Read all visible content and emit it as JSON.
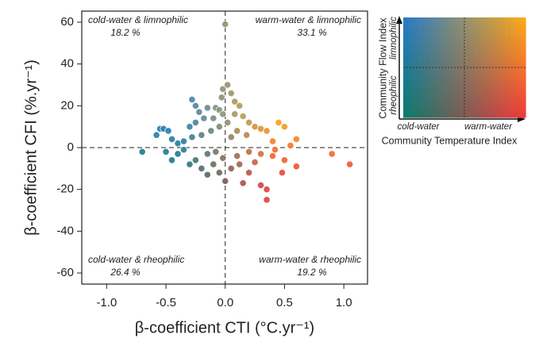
{
  "chart_data": {
    "type": "scatter",
    "xlabel": "β-coefficient CTI (°C.yr⁻¹)",
    "ylabel": "β-coefficient CFI (%.yr⁻¹)",
    "xlim": [
      -1.21,
      1.2
    ],
    "ylim": [
      -65.3,
      65.3
    ],
    "xticks": [
      {
        "value": -1,
        "label": "-1.0"
      },
      -0.5,
      {
        "value": 0,
        "label": "0.0"
      },
      0.5,
      {
        "value": 1,
        "label": "1.0"
      }
    ],
    "yticks": [
      -60,
      -40,
      -20,
      0,
      20,
      40,
      60
    ],
    "corner_colors": {
      "limnophilic_cold": "#2b7bc4",
      "limnophilic_warm": "#f9a91b",
      "rheophilic_cold": "#0f7a6c",
      "rheophilic_warm": "#ef3b3b"
    },
    "annotations": [
      {
        "text": "cold-water & limnophilic",
        "share": "18.2 %"
      },
      {
        "text": "warm-water & limnophilic",
        "share": "33.1 %"
      },
      {
        "text": "cold-water & rheophilic",
        "share": "26.4 %"
      },
      {
        "text": "warm-water & rheophilic",
        "share": "19.2 %"
      }
    ],
    "legend": {
      "y_title": "Community Flow Index",
      "y_top": "limnophilic",
      "y_bottom": "rheophilic",
      "x_left": "cold-water",
      "x_right": "warm-water",
      "x_title": "Community Temperature Index"
    },
    "x": [
      -0.28,
      -0.25,
      -0.22,
      -0.15,
      -0.08,
      -0.05,
      -0.02,
      -0.1,
      -0.18,
      -0.25,
      -0.3,
      -0.55,
      -0.52,
      -0.48,
      -0.58,
      -0.45,
      -0.4,
      -0.35,
      -0.28,
      -0.2,
      -0.12,
      -0.05,
      -0.03,
      -0.02,
      0.0,
      0.02,
      0.05,
      0.08,
      0.12,
      0.15,
      0.2,
      0.25,
      0.3,
      0.35,
      0.45,
      0.5,
      0.6,
      0.1,
      0.05,
      0.18,
      0.4,
      0.55,
      0.02,
      0.08,
      0.2,
      0.3,
      0.4,
      0.5,
      0.6,
      0.9,
      1.05,
      0.48,
      0.3,
      0.35,
      0.35,
      0.2,
      0.12,
      0.15,
      0.25,
      0.1,
      0.05,
      0.42,
      -0.7,
      -0.5,
      -0.45,
      -0.3,
      -0.25,
      -0.2,
      -0.15,
      -0.1,
      -0.05,
      0.0,
      -0.35,
      -0.15,
      -0.02,
      -0.08,
      -0.4
    ],
    "values": [
      23,
      20,
      17,
      19,
      19,
      18,
      16,
      14,
      14,
      12,
      10,
      9,
      9,
      8,
      6,
      4,
      2,
      3,
      5,
      6,
      8,
      10,
      24,
      28,
      59,
      30,
      26,
      22,
      20,
      15,
      12,
      10,
      9,
      8,
      12,
      10,
      4,
      8,
      5,
      6,
      3,
      1,
      12,
      16,
      -2,
      -3,
      -4,
      -6,
      -9,
      -3,
      -8,
      -12,
      -18,
      -20,
      -25,
      -12,
      -8,
      -17,
      -7,
      -4,
      -10,
      -1,
      -2,
      -2,
      -6,
      -8,
      -6,
      -10,
      -3,
      -8,
      -12,
      -16,
      -1,
      -13,
      -5,
      -2,
      -3
    ]
  }
}
